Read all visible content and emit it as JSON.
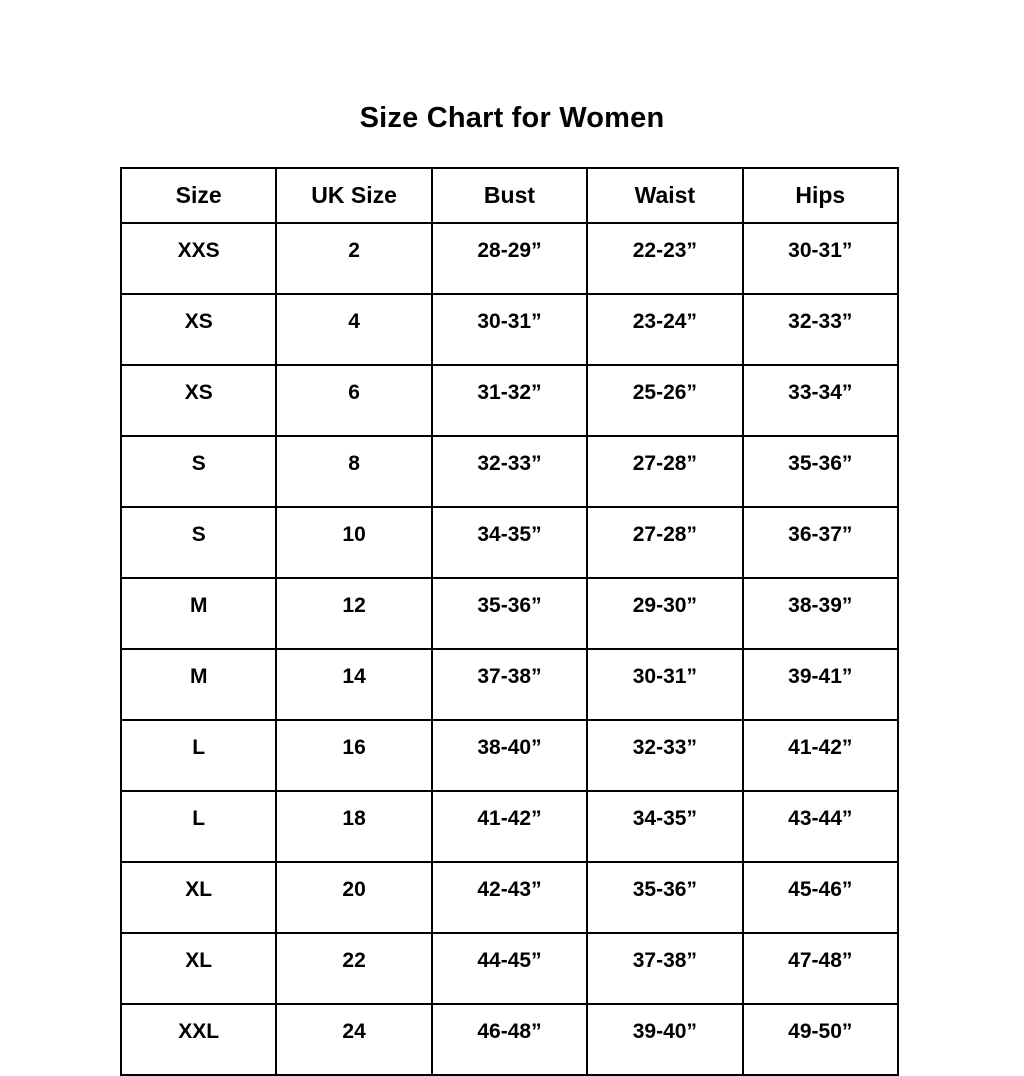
{
  "title": "Size Chart for Women",
  "chart_data": {
    "type": "table",
    "title": "Size Chart for Women",
    "columns": [
      "Size",
      "UK Size",
      "Bust",
      "Waist",
      "Hips"
    ],
    "rows": [
      [
        "XXS",
        "2",
        "28-29”",
        "22-23”",
        "30-31”"
      ],
      [
        "XS",
        "4",
        "30-31”",
        "23-24”",
        "32-33”"
      ],
      [
        "XS",
        "6",
        "31-32”",
        "25-26”",
        "33-34”"
      ],
      [
        "S",
        "8",
        "32-33”",
        "27-28”",
        "35-36”"
      ],
      [
        "S",
        "10",
        "34-35”",
        "27-28”",
        "36-37”"
      ],
      [
        "M",
        "12",
        "35-36”",
        "29-30”",
        "38-39”"
      ],
      [
        "M",
        "14",
        "37-38”",
        "30-31”",
        "39-41”"
      ],
      [
        "L",
        "16",
        "38-40”",
        "32-33”",
        "41-42”"
      ],
      [
        "L",
        "18",
        "41-42”",
        "34-35”",
        "43-44”"
      ],
      [
        "XL",
        "20",
        "42-43”",
        "35-36”",
        "45-46”"
      ],
      [
        "XL",
        "22",
        "44-45”",
        "37-38”",
        "47-48”"
      ],
      [
        "XXL",
        "24",
        "46-48”",
        "39-40”",
        "49-50”"
      ]
    ],
    "layout": {
      "grid": true,
      "border_color": "#000000",
      "background_color": "#ffffff",
      "text_color": "#000000"
    }
  }
}
